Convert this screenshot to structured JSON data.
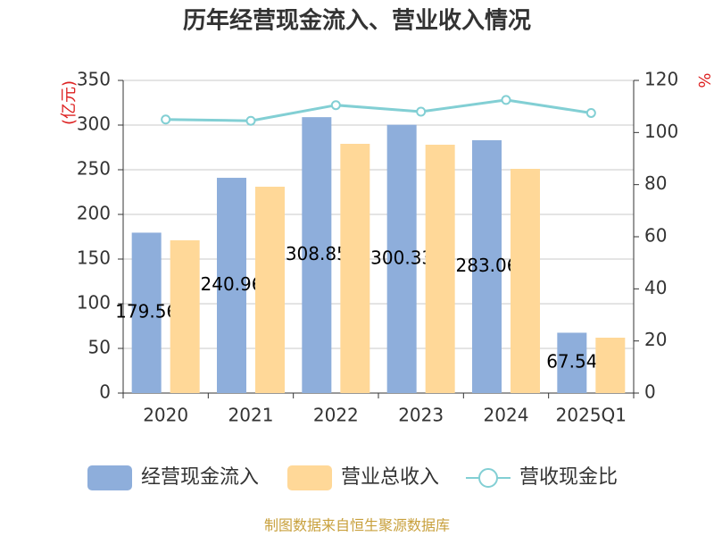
{
  "chart_data": {
    "type": "bar",
    "title": "历年经营现金流入、营业收入情况",
    "y_label": "(亿元)",
    "y2_label": "%",
    "source": "制图数据来自恒生聚源数据库",
    "categories": [
      "2020",
      "2021",
      "2022",
      "2023",
      "2024",
      "2025Q1"
    ],
    "series": [
      {
        "name": "经营现金流入",
        "type": "bar",
        "color": "#8eaedb",
        "values": [
          179.56,
          240.96,
          308.85,
          300.33,
          283.06,
          67.54
        ],
        "show_labels": true
      },
      {
        "name": "营业总收入",
        "type": "bar",
        "color": "#ffd898",
        "values": [
          171,
          231,
          279,
          278,
          251,
          62
        ]
      },
      {
        "name": "营收现金比",
        "type": "line",
        "axis": "y2",
        "color": "#82cfd4",
        "values": [
          105,
          104.5,
          110.5,
          108,
          112.5,
          107.5
        ]
      }
    ],
    "ylim": [
      0,
      350
    ],
    "yticks": [
      0,
      50,
      100,
      150,
      200,
      250,
      300,
      350
    ],
    "y2lim": [
      0,
      120
    ],
    "y2ticks": [
      0,
      20,
      40,
      60,
      80,
      100,
      120
    ],
    "grid": true
  }
}
